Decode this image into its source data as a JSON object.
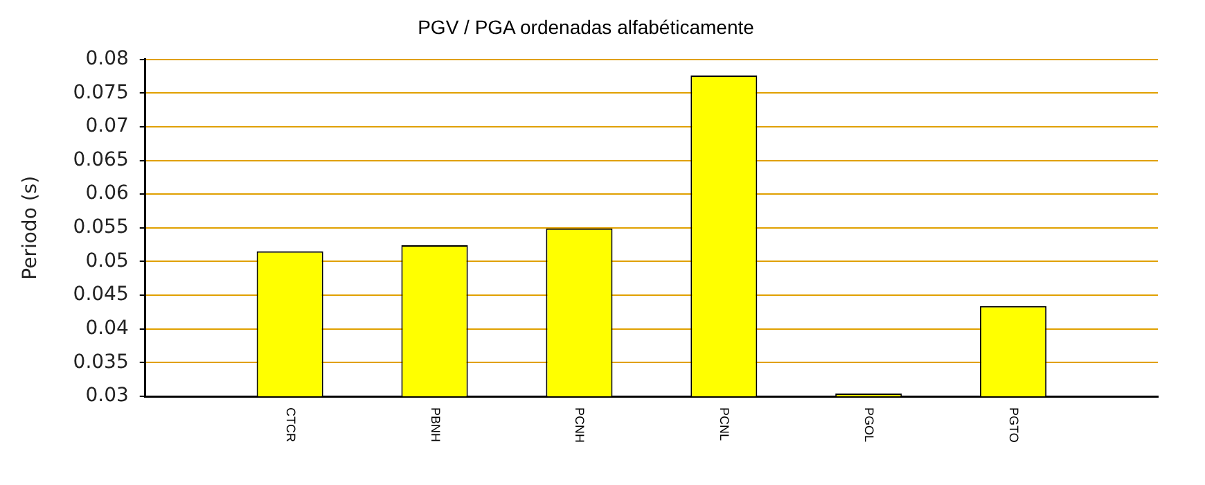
{
  "chart_data": {
    "type": "bar",
    "title": "PGV / PGA ordenadas alfabéticamente",
    "ylabel": "Periodo (s)",
    "categories": [
      "CTCR",
      "PBNH",
      "PCNH",
      "PCNL",
      "PGOL",
      "PGTO"
    ],
    "values": [
      0.0515,
      0.0524,
      0.0549,
      0.0776,
      0.0304,
      0.0434
    ],
    "color": "#ffff00",
    "ylim": [
      0.03,
      0.08
    ],
    "yticks": [
      0.03,
      0.035,
      0.04,
      0.045,
      0.05,
      0.055,
      0.06,
      0.065,
      0.07,
      0.075,
      0.08
    ],
    "grid": "y",
    "legend": false
  }
}
